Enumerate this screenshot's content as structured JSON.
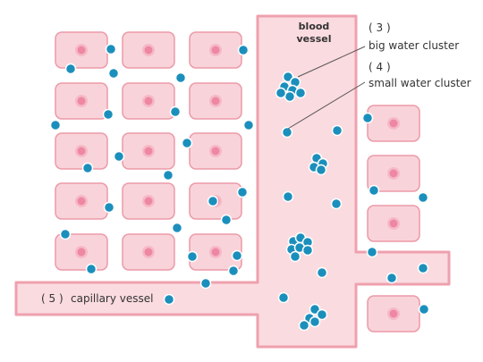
{
  "labels": {
    "blood_vessel_line1": "blood",
    "blood_vessel_line2": "vessel",
    "number_3": "( 3 )",
    "big_water_cluster": "big water cluster",
    "number_4": "( 4 )",
    "small_water_cluster": "small water cluster",
    "number_5": "( 5 )",
    "capillary_vessel": "capillary vessel"
  },
  "colors": {
    "cell_fill": "#f8d4da",
    "cell_stroke": "#ec9aa8",
    "nucleus_fill": "#ee88a2",
    "nucleus_ring": "#f6b9c6",
    "vessel_fill": "#fadbe0",
    "vessel_stroke": "#efa0ae",
    "water_fill": "#1b8fbc",
    "water_stroke": "#ffffff",
    "leader_line": "#555555",
    "text": "#333333"
  }
}
